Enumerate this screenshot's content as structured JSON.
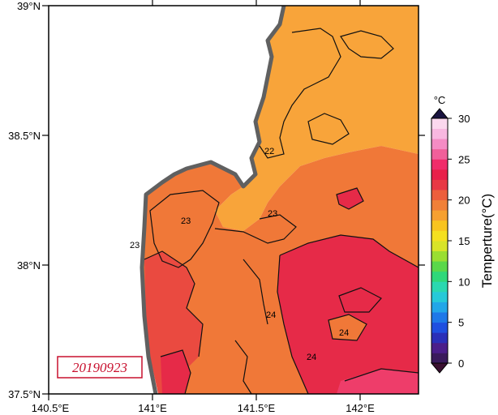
{
  "map": {
    "lat_labels": [
      "39°N",
      "38.5°N",
      "38°N",
      "37.5°N"
    ],
    "lon_labels": [
      "140.5°E",
      "141°E",
      "141.5°E",
      "142°E"
    ],
    "date": "20190923",
    "contour_labels": [
      "22",
      "23",
      "23",
      "23",
      "24",
      "24",
      "24"
    ]
  },
  "colorbar": {
    "unit": "°C",
    "title": "Temperture(°C)",
    "ticks": [
      "30",
      "25",
      "20",
      "15",
      "10",
      "5",
      "0"
    ],
    "colors": [
      "#3a1a5c",
      "#4b1e8a",
      "#2b2fb8",
      "#1f4fe0",
      "#1e78e8",
      "#22a6e8",
      "#26c9d8",
      "#2ad8b0",
      "#2fd87a",
      "#5ad84a",
      "#9ade32",
      "#d8e428",
      "#f4e020",
      "#f8c420",
      "#f6a030",
      "#f08038",
      "#ec5e3c",
      "#e83844",
      "#e8204a",
      "#f02c6a",
      "#f0609a",
      "#f48cc4",
      "#f8b8e0",
      "#fbd8ee"
    ]
  },
  "colors": {
    "warm_sst": "#f8a43a",
    "mid_sst": "#f07838",
    "hot_sst": "#ea4a40",
    "hotter_sst": "#e62a48",
    "land": "#ffffff",
    "coast_shadow": "#606060",
    "date_border": "#c8102e"
  }
}
